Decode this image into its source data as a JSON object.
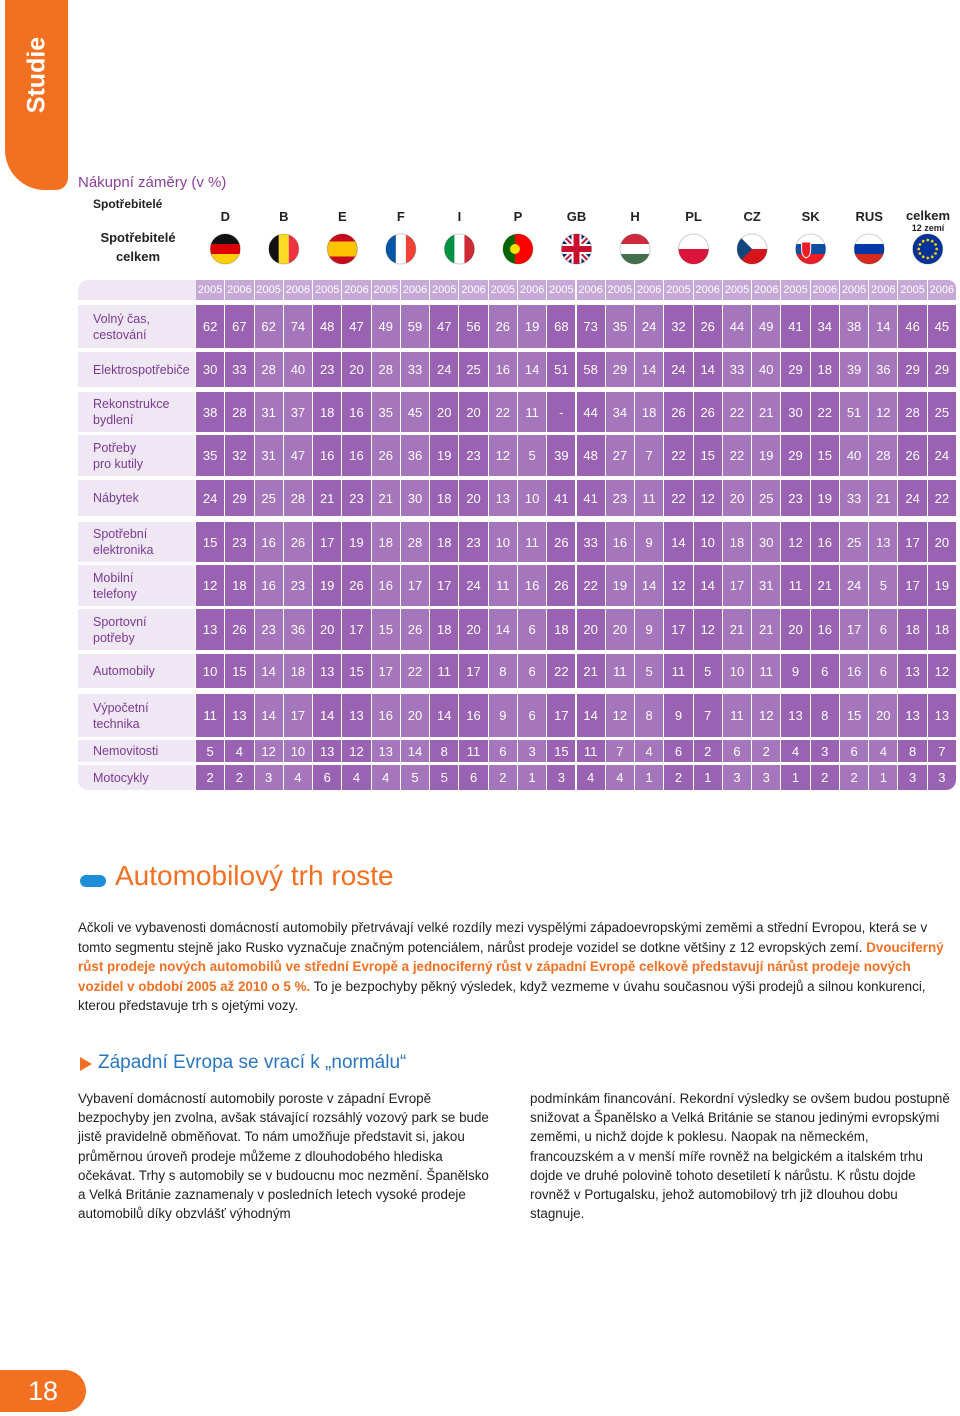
{
  "sidebar": "Studie",
  "table": {
    "title": "Nákupní záměry (v %)",
    "subtitle": "Spotřebitelé",
    "corner": "Spotřebitelé celkem",
    "countries": [
      "D",
      "B",
      "E",
      "F",
      "I",
      "P",
      "GB",
      "H",
      "PL",
      "CZ",
      "SK",
      "RUS"
    ],
    "total": {
      "label": "celkem",
      "sublabel": "12 zemí"
    },
    "years": [
      "2005",
      "2006"
    ],
    "rows": [
      {
        "label": "Volný čas,\ncestování",
        "values": [
          62,
          67,
          62,
          74,
          48,
          47,
          49,
          59,
          47,
          56,
          26,
          19,
          68,
          73,
          35,
          24,
          32,
          26,
          44,
          49,
          41,
          34,
          38,
          14,
          46,
          45
        ]
      },
      {
        "label": "Elektrospotřebiče",
        "values": [
          30,
          33,
          28,
          40,
          23,
          20,
          28,
          33,
          24,
          25,
          16,
          14,
          51,
          58,
          29,
          14,
          24,
          14,
          33,
          40,
          29,
          18,
          39,
          36,
          29,
          29
        ]
      },
      {
        "label": "Rekonstrukce\nbydlení",
        "values": [
          38,
          28,
          31,
          37,
          18,
          16,
          35,
          45,
          20,
          20,
          22,
          11,
          "-",
          44,
          34,
          18,
          26,
          26,
          22,
          21,
          30,
          22,
          51,
          12,
          28,
          25
        ]
      },
      {
        "label": "Potřeby\npro kutily",
        "values": [
          35,
          32,
          31,
          47,
          16,
          16,
          26,
          36,
          19,
          23,
          12,
          5,
          39,
          48,
          27,
          7,
          22,
          15,
          22,
          19,
          29,
          15,
          40,
          28,
          26,
          24
        ]
      },
      {
        "label": "Nábytek",
        "values": [
          24,
          29,
          25,
          28,
          21,
          23,
          21,
          30,
          18,
          20,
          13,
          10,
          41,
          41,
          23,
          11,
          22,
          12,
          20,
          25,
          23,
          19,
          33,
          21,
          24,
          22
        ]
      },
      {
        "label": "Spotřební\nelektronika",
        "values": [
          15,
          23,
          16,
          26,
          17,
          19,
          18,
          28,
          18,
          23,
          10,
          11,
          26,
          33,
          16,
          9,
          14,
          10,
          18,
          30,
          12,
          16,
          25,
          13,
          17,
          20
        ]
      },
      {
        "label": "Mobilní\ntelefony",
        "values": [
          12,
          18,
          16,
          23,
          19,
          26,
          16,
          17,
          17,
          24,
          11,
          16,
          26,
          22,
          19,
          14,
          12,
          14,
          17,
          31,
          11,
          21,
          24,
          5,
          17,
          19
        ]
      },
      {
        "label": "Sportovní\npotřeby",
        "values": [
          13,
          26,
          23,
          36,
          20,
          17,
          15,
          26,
          18,
          20,
          14,
          6,
          18,
          20,
          20,
          9,
          17,
          12,
          21,
          21,
          20,
          16,
          17,
          6,
          18,
          18
        ]
      },
      {
        "label": "Automobily",
        "values": [
          10,
          15,
          14,
          18,
          13,
          15,
          17,
          22,
          11,
          17,
          8,
          6,
          22,
          21,
          11,
          5,
          11,
          5,
          10,
          11,
          9,
          6,
          16,
          6,
          13,
          12
        ]
      },
      {
        "label": "Výpočetní\ntechnika",
        "values": [
          11,
          13,
          14,
          17,
          14,
          13,
          16,
          20,
          14,
          16,
          9,
          6,
          17,
          14,
          12,
          8,
          9,
          7,
          11,
          12,
          13,
          8,
          15,
          20,
          13,
          13
        ]
      },
      {
        "label": "Nemovitosti",
        "values": [
          5,
          4,
          12,
          10,
          13,
          12,
          13,
          14,
          8,
          11,
          6,
          3,
          15,
          11,
          7,
          4,
          6,
          2,
          6,
          2,
          4,
          3,
          6,
          4,
          8,
          7
        ]
      },
      {
        "label": "Motocykly",
        "values": [
          2,
          2,
          3,
          4,
          6,
          4,
          4,
          5,
          5,
          6,
          2,
          1,
          3,
          4,
          4,
          1,
          2,
          1,
          3,
          3,
          1,
          2,
          2,
          1,
          3,
          3
        ]
      }
    ]
  },
  "article": {
    "heading": "Automobilový trh roste",
    "paragraph": [
      {
        "text": "Ačkoli ve vybavenosti domácností automobily přetrvávají velké rozdíly mezi vyspělými západoevropskými zeměmi a střední Evropou, která se v tomto segmentu stejně jako Rusko vyznačuje značným potenciálem, nárůst prodeje vozidel se dotkne většiny z 12 evropských zemí. ",
        "highlight": false
      },
      {
        "text": "Dvouciferný růst prodeje nových automobilů ve střední Evropě a jednociferný růst v západní Evropě celkově představují nárůst prodeje nových vozidel v období 2005 až 2010 o 5 %.",
        "highlight": true
      },
      {
        "text": " To je bezpochyby pěkný výsledek, když vezmeme v úvahu současnou výši prodejů a silnou konkurenci, kterou představuje trh s ojetými vozy.",
        "highlight": false
      }
    ],
    "subheading": "Západní Evropa se vrací k „normálu“",
    "columns": [
      "Vybavení domácností automobily poroste v západní Evropě bezpochyby jen zvolna, avšak stávající rozsáhlý vozový park se bude jistě pravidelně obměňovat. To nám umožňuje představit si, jakou průměrnou úroveň prodeje můžeme z dlouhodobého hlediska očekávat. Trhy s automobily se v budoucnu moc nezmění. Španělsko a Velká Británie zaznamenaly v posledních letech vysoké prodeje automobilů díky obzvlášť výhodným",
      "podmínkám financování. Rekordní výsledky se ovšem budou postupně snižovat a Španělsko a Velká Británie se stanou jedinými evropskými zeměmi, u nichž dojde k poklesu. Naopak na německém, francouzském a v menší míře rovněž na belgickém a italském trhu dojde ve druhé polovině tohoto desetiletí k nárůstu. K růstu dojde rovněž v Portugalsku, jehož automobilový trh již dlouhou dobu stagnuje."
    ]
  },
  "page_number": "18"
}
